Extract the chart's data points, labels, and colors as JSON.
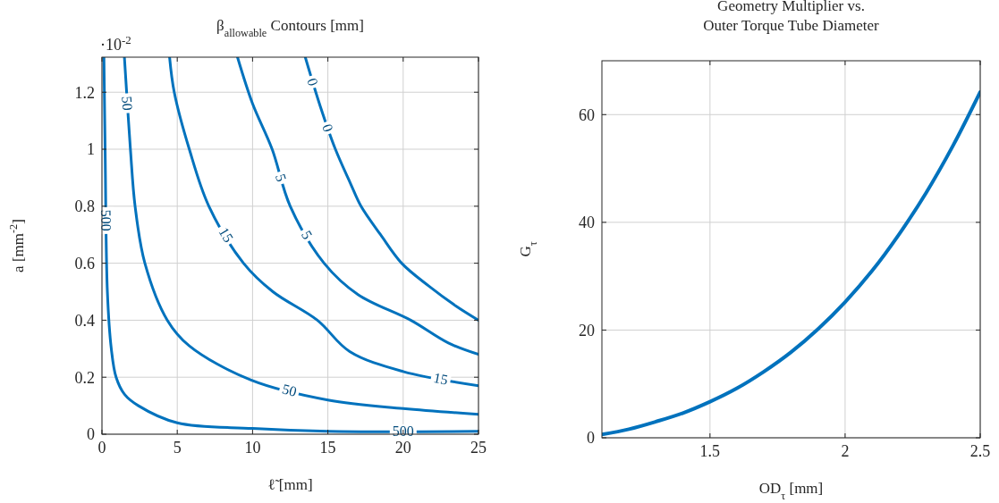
{
  "chart_data": [
    {
      "type": "line",
      "title": "β$_{allowable}$ Contours [mm]",
      "xlabel": "ℓ̃ [mm]",
      "ylabel": "a [mm$^{-2}$]",
      "annotations": [
        "·10$^{-2}$"
      ],
      "xlim": [
        0,
        25
      ],
      "xticks": [
        0,
        5,
        10,
        15,
        20,
        25
      ],
      "ylim": [
        0,
        1.323
      ],
      "yticks": [
        0,
        0.2,
        0.4,
        0.6,
        0.8,
        1,
        1.2
      ],
      "grid": true,
      "legend": false,
      "marker": "none",
      "line_style": "solid",
      "series": [
        {
          "name": "0",
          "color": "#0072bd",
          "x": [
            13.5,
            14.5,
            15.5,
            16.5,
            17.2,
            18.5,
            19.9,
            21.7,
            23.5,
            25
          ],
          "values": [
            1.323,
            1.15,
            1.0,
            0.88,
            0.8,
            0.7,
            0.6,
            0.52,
            0.45,
            0.4
          ]
        },
        {
          "name": "5",
          "color": "#0072bd",
          "x": [
            9,
            10,
            11.3,
            12.5,
            14.75,
            17,
            20.5,
            23,
            25
          ],
          "values": [
            1.323,
            1.16,
            1.0,
            0.8,
            0.6,
            0.49,
            0.4,
            0.32,
            0.28
          ]
        },
        {
          "name": "15",
          "color": "#0072bd",
          "x": [
            4.49,
            4.8,
            5.8,
            7.1,
            9.4,
            11.35,
            14.3,
            16.45,
            20,
            25
          ],
          "values": [
            1.323,
            1.2,
            1.0,
            0.8,
            0.6,
            0.5,
            0.4,
            0.29,
            0.22,
            0.17
          ]
        },
        {
          "name": "50",
          "color": "#0072bd",
          "x": [
            1.49,
            1.89,
            2.2,
            2.85,
            4.34,
            5.8,
            9.9,
            15,
            20,
            25
          ],
          "values": [
            1.323,
            1.0,
            0.8,
            0.6,
            0.4,
            0.31,
            0.19,
            0.12,
            0.09,
            0.07
          ]
        },
        {
          "name": "500",
          "color": "#0072bd",
          "x": [
            0.13,
            0.21,
            0.36,
            0.62,
            0.94,
            1.5,
            2.42,
            5,
            10,
            15,
            25
          ],
          "values": [
            1.323,
            1.0,
            0.5,
            0.3,
            0.2,
            0.14,
            0.1,
            0.04,
            0.02,
            0.01,
            0.01
          ]
        }
      ]
    },
    {
      "type": "line",
      "title": "Geometry Multiplier vs.\nOuter Torque Tube Diameter",
      "xlabel": "OD$_{τ}$ [mm]",
      "ylabel": "G$_{τ}$",
      "xlim": [
        1.1,
        2.5
      ],
      "xticks": [
        1.5,
        2,
        2.5
      ],
      "ylim": [
        0,
        70
      ],
      "yticks": [
        0,
        20,
        40,
        60
      ],
      "grid": true,
      "marker": "none",
      "line_style": "solid",
      "series": [
        {
          "color": "#0072bd",
          "x": [
            1.1,
            1.2,
            1.3,
            1.4,
            1.5,
            1.6,
            1.7,
            1.8,
            1.9,
            2.0,
            2.1,
            2.2,
            2.3,
            2.4,
            2.5
          ],
          "values": [
            0.6,
            1.6,
            3.0,
            4.6,
            6.7,
            9.2,
            12.3,
            15.9,
            20.2,
            25.2,
            31.0,
            37.8,
            45.5,
            54.3,
            64.2
          ]
        }
      ]
    }
  ]
}
